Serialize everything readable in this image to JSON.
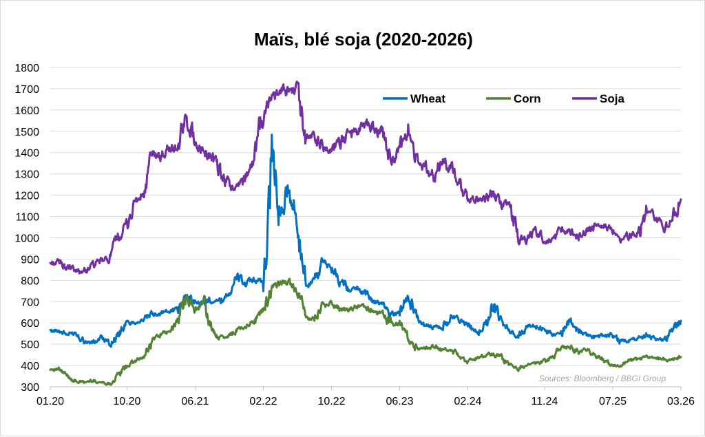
{
  "chart_data": {
    "type": "line",
    "title": "Maïs, blé soja (2020-2026)",
    "source": "Sources: Bloomberg / BBGI Group",
    "ylim": [
      300,
      1800
    ],
    "y_ticks": [
      300,
      400,
      500,
      600,
      700,
      800,
      900,
      1000,
      1100,
      1200,
      1300,
      1400,
      1500,
      1600,
      1700,
      1800
    ],
    "x_tick_labels": [
      "01.20",
      "10.20",
      "06.21",
      "02.22",
      "10.22",
      "06.23",
      "02.24",
      "11.24",
      "07.25",
      "03.26"
    ],
    "grid": true,
    "legend_position": "top-right",
    "series": [
      {
        "name": "Wheat",
        "color": "#0070C0",
        "points": [
          [
            "01.20",
            560
          ],
          [
            "02.20",
            565
          ],
          [
            "03.20",
            545
          ],
          [
            "04.20",
            555
          ],
          [
            "05.20",
            515
          ],
          [
            "06.20",
            505
          ],
          [
            "07.20",
            530
          ],
          [
            "08.20",
            500
          ],
          [
            "09.20",
            545
          ],
          [
            "10.20",
            600
          ],
          [
            "11.20",
            605
          ],
          [
            "12.20",
            615
          ],
          [
            "01.21",
            640
          ],
          [
            "02.21",
            650
          ],
          [
            "03.21",
            655
          ],
          [
            "04.21",
            665
          ],
          [
            "05.21",
            730
          ],
          [
            "06.21",
            700
          ],
          [
            "07.21",
            690
          ],
          [
            "08.21",
            715
          ],
          [
            "09.21",
            700
          ],
          [
            "10.21",
            750
          ],
          [
            "11.21",
            815
          ],
          [
            "12.21",
            780
          ],
          [
            "01.22",
            800
          ],
          [
            "02.22",
            790
          ],
          [
            "03.22",
            1425
          ],
          [
            "04.22",
            1080
          ],
          [
            "05.22",
            1260
          ],
          [
            "06.22",
            1030
          ],
          [
            "07.22",
            780
          ],
          [
            "08.22",
            800
          ],
          [
            "09.22",
            880
          ],
          [
            "10.22",
            860
          ],
          [
            "11.22",
            800
          ],
          [
            "12.22",
            760
          ],
          [
            "01.23",
            760
          ],
          [
            "02.23",
            740
          ],
          [
            "03.23",
            700
          ],
          [
            "04.23",
            690
          ],
          [
            "05.23",
            640
          ],
          [
            "06.23",
            650
          ],
          [
            "07.23",
            740
          ],
          [
            "08.23",
            620
          ],
          [
            "09.23",
            590
          ],
          [
            "10.23",
            580
          ],
          [
            "11.23",
            580
          ],
          [
            "12.23",
            630
          ],
          [
            "01.24",
            615
          ],
          [
            "02.24",
            590
          ],
          [
            "03.24",
            540
          ],
          [
            "04.24",
            590
          ],
          [
            "05.24",
            690
          ],
          [
            "06.24",
            590
          ],
          [
            "07.24",
            560
          ],
          [
            "08.24",
            540
          ],
          [
            "09.24",
            585
          ],
          [
            "10.24",
            590
          ],
          [
            "11.24",
            560
          ],
          [
            "12.24",
            545
          ],
          [
            "01.25",
            555
          ],
          [
            "02.25",
            610
          ],
          [
            "03.25",
            560
          ],
          [
            "04.25",
            540
          ],
          [
            "05.25",
            530
          ],
          [
            "06.25",
            540
          ],
          [
            "07.25",
            545
          ],
          [
            "08.25",
            510
          ],
          [
            "09.25",
            520
          ],
          [
            "10.25",
            525
          ],
          [
            "11.25",
            545
          ],
          [
            "12.25",
            525
          ],
          [
            "01.26",
            520
          ],
          [
            "02.26",
            560
          ],
          [
            "03.26",
            610
          ]
        ]
      },
      {
        "name": "Corn",
        "color": "#548235",
        "points": [
          [
            "01.20",
            385
          ],
          [
            "02.20",
            380
          ],
          [
            "03.20",
            350
          ],
          [
            "04.20",
            325
          ],
          [
            "05.20",
            320
          ],
          [
            "06.20",
            330
          ],
          [
            "07.20",
            320
          ],
          [
            "08.20",
            315
          ],
          [
            "09.20",
            355
          ],
          [
            "10.20",
            400
          ],
          [
            "11.20",
            420
          ],
          [
            "12.20",
            440
          ],
          [
            "01.21",
            520
          ],
          [
            "02.21",
            550
          ],
          [
            "03.21",
            555
          ],
          [
            "04.21",
            610
          ],
          [
            "05.21",
            730
          ],
          [
            "06.21",
            660
          ],
          [
            "07.21",
            700
          ],
          [
            "08.21",
            560
          ],
          [
            "09.21",
            530
          ],
          [
            "10.21",
            540
          ],
          [
            "11.21",
            570
          ],
          [
            "12.21",
            590
          ],
          [
            "01.22",
            610
          ],
          [
            "02.22",
            660
          ],
          [
            "03.22",
            760
          ],
          [
            "04.22",
            790
          ],
          [
            "05.22",
            785
          ],
          [
            "06.22",
            750
          ],
          [
            "07.22",
            620
          ],
          [
            "08.22",
            620
          ],
          [
            "09.22",
            680
          ],
          [
            "10.22",
            690
          ],
          [
            "11.22",
            665
          ],
          [
            "12.22",
            660
          ],
          [
            "01.23",
            675
          ],
          [
            "02.23",
            680
          ],
          [
            "03.23",
            640
          ],
          [
            "04.23",
            650
          ],
          [
            "05.23",
            590
          ],
          [
            "06.23",
            600
          ],
          [
            "07.23",
            530
          ],
          [
            "08.23",
            480
          ],
          [
            "09.23",
            480
          ],
          [
            "10.23",
            490
          ],
          [
            "11.23",
            470
          ],
          [
            "12.23",
            475
          ],
          [
            "01.24",
            445
          ],
          [
            "02.24",
            420
          ],
          [
            "03.24",
            435
          ],
          [
            "04.24",
            445
          ],
          [
            "05.24",
            455
          ],
          [
            "06.24",
            440
          ],
          [
            "07.24",
            400
          ],
          [
            "08.24",
            385
          ],
          [
            "09.24",
            415
          ],
          [
            "10.24",
            410
          ],
          [
            "11.24",
            420
          ],
          [
            "12.24",
            440
          ],
          [
            "01.25",
            485
          ],
          [
            "02.25",
            490
          ],
          [
            "03.25",
            460
          ],
          [
            "04.25",
            475
          ],
          [
            "05.25",
            445
          ],
          [
            "06.25",
            425
          ],
          [
            "07.25",
            400
          ],
          [
            "08.25",
            395
          ],
          [
            "09.25",
            420
          ],
          [
            "10.25",
            430
          ],
          [
            "11.25",
            440
          ],
          [
            "12.25",
            440
          ],
          [
            "01.26",
            425
          ],
          [
            "02.26",
            430
          ],
          [
            "03.26",
            440
          ]
        ]
      },
      {
        "name": "Soja",
        "color": "#7030A0",
        "points": [
          [
            "01.20",
            880
          ],
          [
            "02.20",
            885
          ],
          [
            "03.20",
            860
          ],
          [
            "04.20",
            840
          ],
          [
            "05.20",
            845
          ],
          [
            "06.20",
            870
          ],
          [
            "07.20",
            890
          ],
          [
            "08.20",
            900
          ],
          [
            "09.20",
            1000
          ],
          [
            "10.20",
            1060
          ],
          [
            "11.20",
            1170
          ],
          [
            "12.20",
            1200
          ],
          [
            "01.21",
            1390
          ],
          [
            "02.21",
            1380
          ],
          [
            "03.21",
            1420
          ],
          [
            "04.21",
            1420
          ],
          [
            "05.21",
            1570
          ],
          [
            "06.21",
            1450
          ],
          [
            "07.21",
            1400
          ],
          [
            "08.21",
            1380
          ],
          [
            "09.21",
            1290
          ],
          [
            "10.21",
            1240
          ],
          [
            "11.21",
            1230
          ],
          [
            "12.21",
            1300
          ],
          [
            "01.22",
            1380
          ],
          [
            "02.22",
            1580
          ],
          [
            "03.22",
            1660
          ],
          [
            "04.22",
            1680
          ],
          [
            "05.22",
            1700
          ],
          [
            "06.22",
            1700
          ],
          [
            "07.22",
            1480
          ],
          [
            "08.22",
            1480
          ],
          [
            "09.22",
            1420
          ],
          [
            "10.22",
            1420
          ],
          [
            "11.22",
            1450
          ],
          [
            "12.22",
            1480
          ],
          [
            "01.23",
            1510
          ],
          [
            "02.23",
            1530
          ],
          [
            "03.23",
            1510
          ],
          [
            "04.23",
            1490
          ],
          [
            "05.23",
            1360
          ],
          [
            "06.23",
            1410
          ],
          [
            "07.23",
            1510
          ],
          [
            "08.23",
            1380
          ],
          [
            "09.23",
            1330
          ],
          [
            "10.23",
            1290
          ],
          [
            "11.23",
            1360
          ],
          [
            "12.23",
            1320
          ],
          [
            "01.24",
            1250
          ],
          [
            "02.24",
            1180
          ],
          [
            "03.24",
            1180
          ],
          [
            "04.24",
            1170
          ],
          [
            "05.24",
            1220
          ],
          [
            "06.24",
            1160
          ],
          [
            "07.24",
            1150
          ],
          [
            "08.24",
            1000
          ],
          [
            "09.24",
            990
          ],
          [
            "10.24",
            1030
          ],
          [
            "11.24",
            990
          ],
          [
            "12.24",
            985
          ],
          [
            "01.25",
            1030
          ],
          [
            "02.25",
            1040
          ],
          [
            "03.25",
            1010
          ],
          [
            "04.25",
            1030
          ],
          [
            "05.25",
            1050
          ],
          [
            "06.25",
            1050
          ],
          [
            "07.25",
            1040
          ],
          [
            "08.25",
            980
          ],
          [
            "09.25",
            1010
          ],
          [
            "10.25",
            1020
          ],
          [
            "11.25",
            1130
          ],
          [
            "12.25",
            1080
          ],
          [
            "01.26",
            1050
          ],
          [
            "02.26",
            1080
          ],
          [
            "03.26",
            1180
          ]
        ]
      }
    ]
  }
}
